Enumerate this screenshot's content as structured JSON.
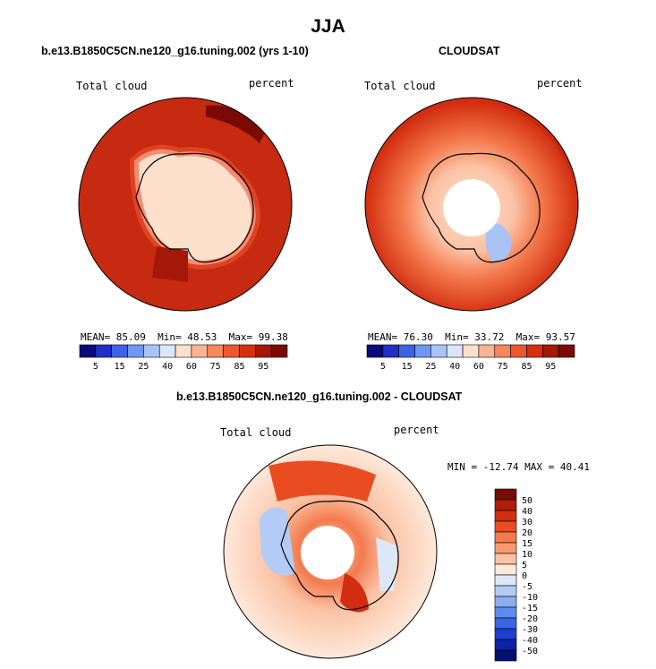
{
  "main_title": "JJA",
  "panels": [
    {
      "title": "b.e13.B1850C5CN.ne120_g16.tuning.002 (yrs 1-10)",
      "left_label": "Total cloud",
      "right_label": "percent",
      "stats": {
        "mean_label": "MEAN=",
        "mean": "85.09",
        "min_label": "Min=",
        "min": "48.53",
        "max_label": "Max=",
        "max": "99.38"
      }
    },
    {
      "title": "CLOUDSAT",
      "left_label": "Total cloud",
      "right_label": "percent",
      "stats": {
        "mean_label": "MEAN=",
        "mean": "76.30",
        "min_label": "Min=",
        "min": "33.72",
        "max_label": "Max=",
        "max": "93.57"
      }
    },
    {
      "title": "b.e13.B1850C5CN.ne120_g16.tuning.002 - CLOUDSAT",
      "left_label": "Total cloud",
      "right_label": "percent",
      "minmax_text": "MIN = -12.74 MAX =  40.41"
    }
  ],
  "colorbar_abs": {
    "labels": [
      "5",
      "15",
      "25",
      "40",
      "60",
      "75",
      "85",
      "95"
    ],
    "colors": [
      "#0a0a78",
      "#1f2fc8",
      "#3e62e6",
      "#6f97ef",
      "#a9c3f5",
      "#d9e6fb",
      "#fde0cc",
      "#f9b593",
      "#f6875f",
      "#ee5530",
      "#d62e10",
      "#a41808",
      "#7a0a04"
    ]
  },
  "colorbar_diff": {
    "labels": [
      "50",
      "40",
      "30",
      "20",
      "15",
      "10",
      "5",
      "0",
      "-5",
      "-10",
      "-15",
      "-20",
      "-30",
      "-40",
      "-50"
    ],
    "colors": [
      "#7a0a04",
      "#b01c0a",
      "#d22d10",
      "#ea4c22",
      "#f47a4e",
      "#f79a72",
      "#fbc2a4",
      "#fde9da",
      "#dce8fa",
      "#b4ccf5",
      "#8caff0",
      "#5f8cea",
      "#3a66e2",
      "#1f3fce",
      "#0d22a6",
      "#06106f"
    ]
  }
}
